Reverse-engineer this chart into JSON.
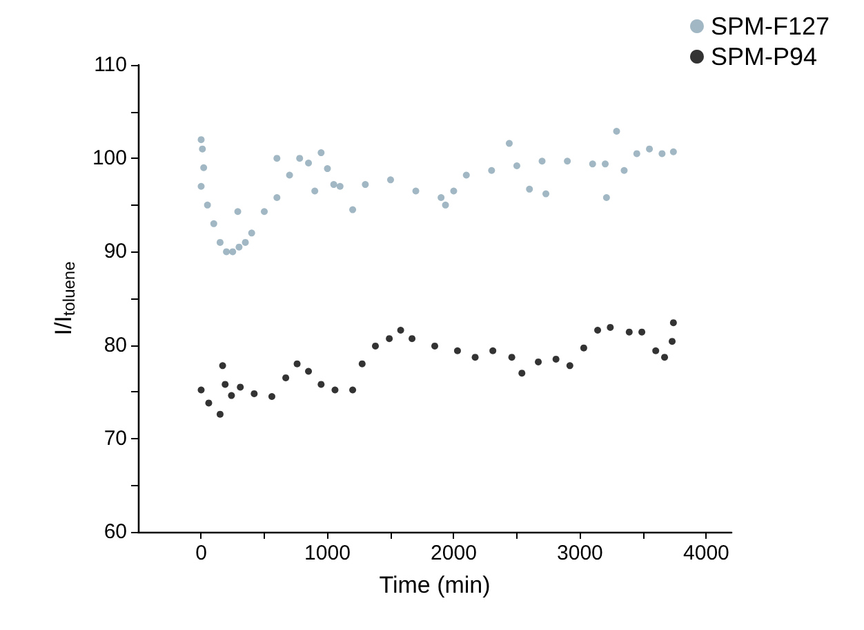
{
  "chart_data": {
    "type": "scatter",
    "xlabel": "Time (min)",
    "ylabel": "I/I$_{toluene}$",
    "xlim": [
      -500,
      4200
    ],
    "xticks": [
      0,
      {
        "value": 500,
        "label": null
      },
      1000,
      {
        "value": 1500,
        "label": null
      },
      2000,
      {
        "value": 2500,
        "label": null
      },
      3000,
      {
        "value": 3500,
        "label": null
      },
      4000
    ],
    "ylim": [
      60,
      110
    ],
    "yticks": [
      60,
      {
        "value": 65,
        "label": null
      },
      70,
      {
        "value": 75,
        "label": null
      },
      80,
      {
        "value": 85,
        "label": null
      },
      90,
      {
        "value": 95,
        "label": null
      },
      100,
      {
        "value": 105,
        "label": null
      },
      110
    ],
    "grid": false,
    "legend": "top right",
    "marker": "circle",
    "series": [
      {
        "name": "SPM-F127",
        "color": "#8aa6b5",
        "x": [
          0,
          0,
          10,
          20,
          50,
          100,
          150,
          200,
          250,
          290,
          300,
          350,
          400,
          500,
          600,
          600,
          700,
          780,
          850,
          900,
          950,
          1000,
          1050,
          1100,
          1200,
          1300,
          1500,
          1700,
          1900,
          1935,
          2000,
          2100,
          2300,
          2440,
          2500,
          2600,
          2700,
          2730,
          2900,
          3100,
          3200,
          3210,
          3290,
          3350,
          3450,
          3550,
          3650,
          3740
        ],
        "values": [
          97,
          102,
          101,
          99,
          95,
          93,
          91,
          90,
          90,
          94.3,
          90.5,
          91,
          92,
          94.3,
          95.8,
          100,
          98.2,
          100,
          99.5,
          96.5,
          100.6,
          98.9,
          97.2,
          97,
          94.5,
          97.2,
          97.7,
          96.5,
          95.8,
          95,
          96.5,
          98.2,
          98.7,
          101.6,
          99.2,
          96.7,
          99.7,
          96.2,
          99.7,
          99.4,
          99.4,
          95.8,
          102.9,
          98.7,
          100.5,
          101,
          100.5,
          100.7
        ]
      },
      {
        "name": "SPM-P94",
        "color": "#000000",
        "x": [
          0,
          60,
          150,
          170,
          190,
          240,
          310,
          420,
          560,
          670,
          760,
          850,
          950,
          1060,
          1200,
          1275,
          1380,
          1490,
          1580,
          1670,
          1850,
          2030,
          2170,
          2310,
          2460,
          2540,
          2670,
          2810,
          2920,
          3030,
          3140,
          3240,
          3390,
          3490,
          3600,
          3670,
          3730,
          3740
        ],
        "values": [
          75.2,
          73.8,
          72.6,
          77.8,
          75.8,
          74.6,
          75.5,
          74.8,
          74.5,
          76.5,
          78,
          77.2,
          75.8,
          75.2,
          75.2,
          78,
          79.9,
          80.7,
          81.6,
          80.7,
          79.9,
          79.4,
          78.7,
          79.4,
          78.7,
          77,
          78.2,
          78.5,
          77.8,
          79.7,
          81.6,
          81.9,
          81.4,
          81.4,
          79.4,
          78.7,
          80.4,
          82.4
        ]
      }
    ]
  }
}
